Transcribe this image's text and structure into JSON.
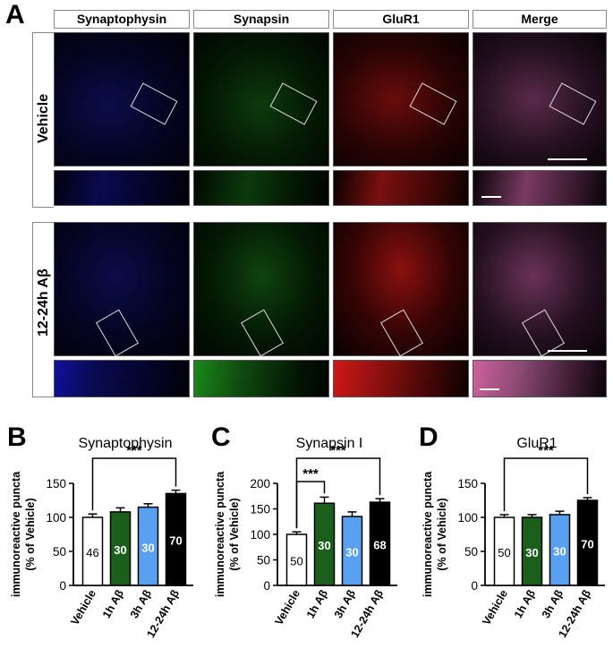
{
  "panelA": {
    "letter": "A",
    "columns": [
      "Synaptophysin",
      "Synapsin",
      "GluR1",
      "Merge"
    ],
    "rows": [
      "Vehicle",
      "12-24h Aβ"
    ]
  },
  "colors": {
    "blue_channel": "#10108a",
    "green_channel": "#1c8a1c",
    "red_channel": "#c81818",
    "merge_channel": "#b0407a",
    "vehicle_bar": "#ffffff",
    "ab1h_bar": "#1c5e1c",
    "ab3h_bar": "#5aa0f0",
    "ab12h_bar": "#000000"
  },
  "chart_data": [
    {
      "letter": "B",
      "type": "bar",
      "title": "Synaptophysin",
      "ylabel": "immunoreactive puncta",
      "ylabel2": "(% of Vehicle)",
      "ylim": [
        0,
        150
      ],
      "yticks": [
        "0",
        "50",
        "100",
        "150"
      ],
      "categories": [
        "Vehicle",
        "1h Aβ",
        "3h Aβ",
        "12-24h Aβ"
      ],
      "values": [
        100,
        108,
        115,
        135
      ],
      "errors": [
        5,
        6,
        5,
        5
      ],
      "n_labels": [
        "46",
        "30",
        "30",
        "70"
      ],
      "significance": [
        {
          "from": 0,
          "to": 3,
          "label": "***"
        }
      ]
    },
    {
      "letter": "C",
      "type": "bar",
      "title": "Synapsin I",
      "ylabel": "immunoreactive puncta",
      "ylabel2": "(% of Vehicle)",
      "ylim": [
        0,
        200
      ],
      "yticks": [
        "0",
        "50",
        "100",
        "150",
        "200"
      ],
      "categories": [
        "Vehicle",
        "1h Aβ",
        "3h Aβ",
        "12-24h Aβ"
      ],
      "values": [
        100,
        161,
        135,
        163
      ],
      "errors": [
        5,
        12,
        9,
        7
      ],
      "n_labels": [
        "50",
        "30",
        "30",
        "68"
      ],
      "significance": [
        {
          "from": 0,
          "to": 3,
          "label": "***"
        },
        {
          "from": 0,
          "to": 1,
          "label": "***"
        }
      ]
    },
    {
      "letter": "D",
      "type": "bar",
      "title": "GluR1",
      "ylabel": "immunoreactive puncta",
      "ylabel2": "(% of Vehicle)",
      "ylim": [
        0,
        150
      ],
      "yticks": [
        "0",
        "50",
        "100",
        "150"
      ],
      "categories": [
        "Vehicle",
        "1h Aβ",
        "3h Aβ",
        "12-24h Aβ"
      ],
      "values": [
        100,
        100,
        104,
        125
      ],
      "errors": [
        4,
        4,
        5,
        4
      ],
      "n_labels": [
        "50",
        "30",
        "30",
        "70"
      ],
      "significance": [
        {
          "from": 0,
          "to": 3,
          "label": "***"
        }
      ]
    }
  ]
}
